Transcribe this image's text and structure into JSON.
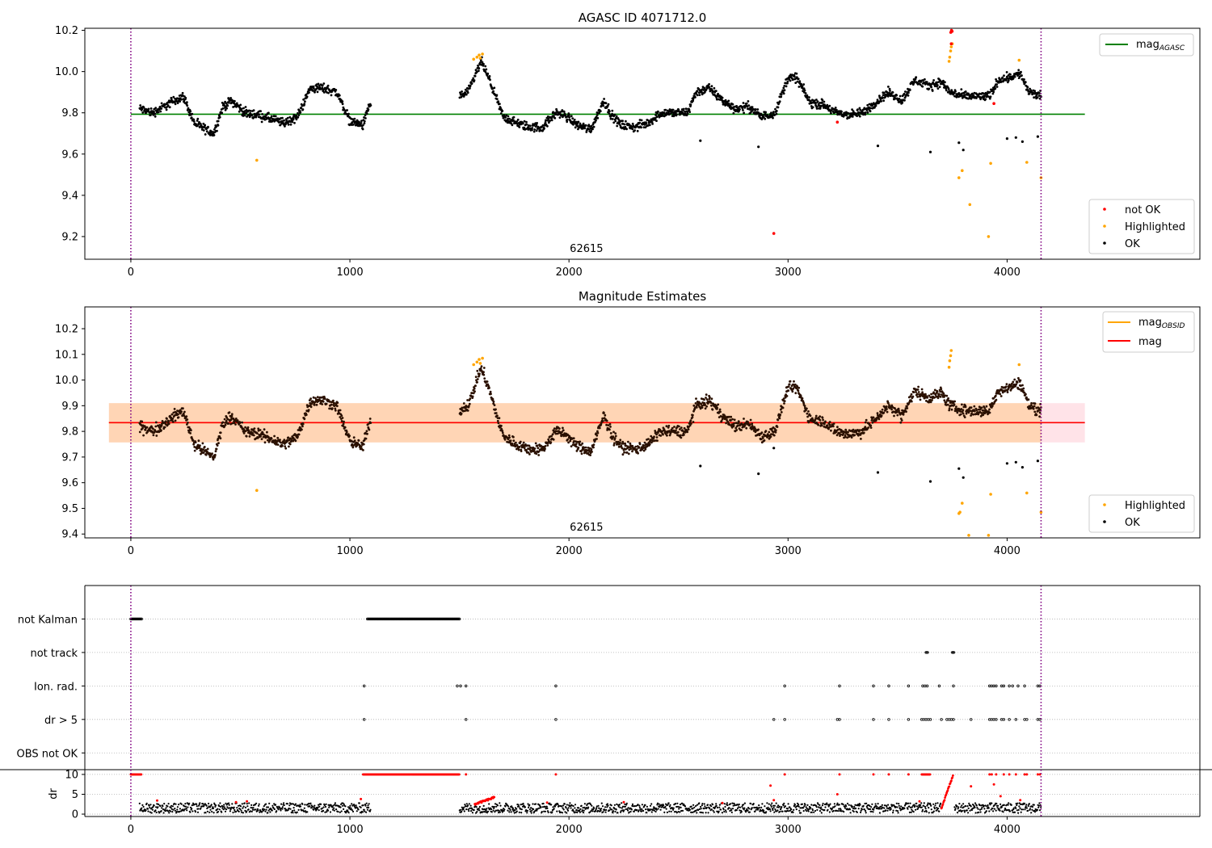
{
  "figure": {
    "colors": {
      "ok": "#000000",
      "highlighted": "#ffa500",
      "not_ok": "#ff0000",
      "mag_agasc": "#008000",
      "mag_obsid": "#ffa500",
      "mag": "#ff0000",
      "band_obsid": "#ffa500",
      "band_mag": "#ffc0cb",
      "obsid_boundary": "#800080",
      "flag_grid": "#b0b0b0"
    }
  },
  "chart_data": [
    {
      "id": "agasc",
      "type": "scatter",
      "title": "AGASC ID 4071712.0",
      "xlim": [
        -210,
        4880
      ],
      "ylim": [
        9.09,
        10.21
      ],
      "xticks": [
        0,
        1000,
        2000,
        3000,
        4000
      ],
      "yticks": [
        9.2,
        9.4,
        9.6,
        9.8,
        10.0,
        10.2
      ],
      "ytick_labels": [
        "9.2",
        "9.4",
        "9.6",
        "9.8",
        "10.0",
        "10.2"
      ],
      "grid": false,
      "obsid_label": {
        "text": "62615",
        "x": 2080
      },
      "obsid_boundaries": [
        0,
        4155
      ],
      "hlines": [
        {
          "name": "mag_AGASC",
          "y": 9.793,
          "x0": 0,
          "x1": 4355,
          "color": "#008000"
        }
      ],
      "legend_lines": {
        "position": "upper right",
        "items": [
          {
            "label": "mag",
            "sub": "AGASC",
            "color": "#008000"
          }
        ]
      },
      "legend_points": {
        "position": "lower right",
        "items": [
          {
            "label": "not OK",
            "color": "#ff0000"
          },
          {
            "label": "Highlighted",
            "color": "#ffa500"
          },
          {
            "label": "OK",
            "color": "#000000"
          }
        ]
      },
      "gaps": [
        [
          1095,
          1500
        ]
      ],
      "anchors_t": [
        40,
        100,
        150,
        200,
        240,
        290,
        340,
        380,
        420,
        460,
        520,
        580,
        640,
        700,
        760,
        820,
        880,
        940,
        1000,
        1060,
        1090,
        1500,
        1540,
        1580,
        1600,
        1640,
        1700,
        1760,
        1820,
        1880,
        1940,
        1980,
        2040,
        2100,
        2160,
        2200,
        2240,
        2300,
        2360,
        2420,
        2480,
        2540,
        2580,
        2640,
        2700,
        2760,
        2820,
        2880,
        2940,
        3000,
        3040,
        3100,
        3160,
        3220,
        3280,
        3340,
        3400,
        3460,
        3520,
        3580,
        3640,
        3700,
        3740,
        3800,
        3860,
        3920,
        3960,
        4000,
        4060,
        4100,
        4155
      ],
      "anchors_v": [
        9.82,
        9.8,
        9.83,
        9.86,
        9.88,
        9.75,
        9.72,
        9.7,
        9.83,
        9.86,
        9.8,
        9.79,
        9.77,
        9.75,
        9.78,
        9.92,
        9.92,
        9.9,
        9.76,
        9.74,
        9.84,
        9.88,
        9.9,
        10.0,
        10.05,
        9.95,
        9.78,
        9.75,
        9.73,
        9.73,
        9.8,
        9.79,
        9.74,
        9.72,
        9.86,
        9.78,
        9.74,
        9.73,
        9.75,
        9.8,
        9.8,
        9.8,
        9.9,
        9.92,
        9.86,
        9.82,
        9.83,
        9.78,
        9.8,
        9.97,
        9.97,
        9.85,
        9.84,
        9.8,
        9.79,
        9.8,
        9.85,
        9.9,
        9.86,
        9.96,
        9.93,
        9.95,
        9.9,
        9.88,
        9.88,
        9.88,
        9.96,
        9.97,
        9.99,
        9.9,
        9.88
      ],
      "noise": 0.02,
      "ok_outliers": [
        [
          2600,
          9.665
        ],
        [
          2865,
          9.635
        ],
        [
          3410,
          9.64
        ],
        [
          3650,
          9.61
        ],
        [
          3780,
          9.655
        ],
        [
          3800,
          9.62
        ],
        [
          4000,
          9.675
        ],
        [
          4040,
          9.68
        ],
        [
          4070,
          9.66
        ],
        [
          4140,
          9.685
        ]
      ],
      "highlighted_points": [
        [
          575,
          9.57
        ],
        [
          1565,
          10.06
        ],
        [
          1580,
          10.07
        ],
        [
          1590,
          10.08
        ],
        [
          1605,
          10.085
        ],
        [
          1595,
          10.065
        ],
        [
          3735,
          10.05
        ],
        [
          3738,
          10.07
        ],
        [
          3742,
          10.1
        ],
        [
          3745,
          10.12
        ],
        [
          3750,
          10.135
        ],
        [
          3780,
          9.485
        ],
        [
          3795,
          9.52
        ],
        [
          3830,
          9.355
        ],
        [
          3915,
          9.2
        ],
        [
          3925,
          9.555
        ],
        [
          4055,
          10.055
        ],
        [
          4090,
          9.56
        ],
        [
          4155,
          9.485
        ]
      ],
      "not_ok_points": [
        [
          2935,
          9.215
        ],
        [
          3225,
          9.755
        ],
        [
          3743,
          10.19
        ],
        [
          3746,
          10.2
        ],
        [
          3749,
          10.195
        ],
        [
          3745,
          10.135
        ],
        [
          3940,
          9.845
        ]
      ]
    },
    {
      "id": "mag_estimates",
      "type": "scatter",
      "title": "Magnitude Estimates",
      "xlim": [
        -210,
        4880
      ],
      "ylim": [
        9.385,
        10.285
      ],
      "xticks": [
        0,
        1000,
        2000,
        3000,
        4000
      ],
      "yticks": [
        9.4,
        9.5,
        9.6,
        9.7,
        9.8,
        9.9,
        10.0,
        10.1,
        10.2
      ],
      "ytick_labels": [
        "9.4",
        "9.5",
        "9.6",
        "9.7",
        "9.8",
        "9.9",
        "10.0",
        "10.1",
        "10.2"
      ],
      "grid": false,
      "obsid_label": {
        "text": "62615",
        "x": 2080
      },
      "obsid_boundaries": [
        0,
        4155
      ],
      "bands": [
        {
          "name": "mag_band",
          "y0": 9.757,
          "y1": 9.91,
          "x0": -100,
          "x1": 4355,
          "color": "#ffc0cb",
          "opacity": 0.45
        },
        {
          "name": "mag_obsid_band",
          "y0": 9.757,
          "y1": 9.91,
          "x0": -100,
          "x1": 4155,
          "color": "#ffa500",
          "opacity": 0.22
        }
      ],
      "hlines": [
        {
          "name": "mag_OBSID",
          "y": 9.834,
          "x0": -100,
          "x1": 4155,
          "color": "#ffa500"
        },
        {
          "name": "mag",
          "y": 9.834,
          "x0": -100,
          "x1": 4355,
          "color": "#ff0000"
        }
      ],
      "legend_lines": {
        "position": "upper right",
        "items": [
          {
            "label": "mag",
            "sub": "OBSID",
            "color": "#ffa500"
          },
          {
            "label": "mag",
            "sub": "",
            "color": "#ff0000"
          }
        ]
      },
      "legend_points": {
        "position": "lower right",
        "items": [
          {
            "label": "Highlighted",
            "color": "#ffa500"
          },
          {
            "label": "OK",
            "color": "#000000"
          }
        ]
      },
      "gaps": [
        [
          1095,
          1500
        ]
      ],
      "anchors_t": [
        40,
        100,
        150,
        200,
        240,
        290,
        340,
        380,
        420,
        460,
        520,
        580,
        640,
        700,
        760,
        820,
        880,
        940,
        1000,
        1060,
        1090,
        1500,
        1540,
        1580,
        1600,
        1640,
        1700,
        1760,
        1820,
        1880,
        1940,
        1980,
        2040,
        2100,
        2160,
        2200,
        2240,
        2300,
        2360,
        2420,
        2480,
        2540,
        2580,
        2640,
        2700,
        2760,
        2820,
        2880,
        2940,
        3000,
        3040,
        3100,
        3160,
        3220,
        3280,
        3340,
        3400,
        3460,
        3520,
        3580,
        3640,
        3700,
        3740,
        3800,
        3860,
        3920,
        3960,
        4000,
        4060,
        4100,
        4155
      ],
      "anchors_v": [
        9.82,
        9.8,
        9.83,
        9.86,
        9.88,
        9.75,
        9.72,
        9.7,
        9.83,
        9.86,
        9.8,
        9.79,
        9.77,
        9.75,
        9.78,
        9.92,
        9.92,
        9.9,
        9.76,
        9.74,
        9.84,
        9.88,
        9.9,
        10.0,
        10.05,
        9.95,
        9.78,
        9.75,
        9.73,
        9.73,
        9.8,
        9.79,
        9.74,
        9.72,
        9.86,
        9.78,
        9.74,
        9.73,
        9.75,
        9.8,
        9.8,
        9.8,
        9.9,
        9.92,
        9.86,
        9.82,
        9.83,
        9.78,
        9.8,
        9.97,
        9.97,
        9.85,
        9.84,
        9.8,
        9.79,
        9.8,
        9.85,
        9.9,
        9.86,
        9.96,
        9.93,
        9.95,
        9.9,
        9.88,
        9.88,
        9.88,
        9.96,
        9.97,
        9.99,
        9.9,
        9.88
      ],
      "noise": 0.02,
      "ok_outliers": [
        [
          2600,
          9.665
        ],
        [
          2865,
          9.635
        ],
        [
          2935,
          9.735
        ],
        [
          3410,
          9.64
        ],
        [
          3650,
          9.605
        ],
        [
          3780,
          9.655
        ],
        [
          3800,
          9.62
        ],
        [
          4000,
          9.675
        ],
        [
          4040,
          9.68
        ],
        [
          4070,
          9.66
        ],
        [
          4140,
          9.685
        ]
      ],
      "highlighted_points": [
        [
          575,
          9.57
        ],
        [
          1565,
          10.06
        ],
        [
          1580,
          10.07
        ],
        [
          1590,
          10.08
        ],
        [
          1605,
          10.085
        ],
        [
          1595,
          10.065
        ],
        [
          3735,
          10.05
        ],
        [
          3738,
          10.075
        ],
        [
          3742,
          10.095
        ],
        [
          3745,
          10.115
        ],
        [
          3780,
          9.48
        ],
        [
          3785,
          9.485
        ],
        [
          3795,
          9.52
        ],
        [
          3825,
          9.395
        ],
        [
          3915,
          9.395
        ],
        [
          3925,
          9.555
        ],
        [
          4055,
          10.06
        ],
        [
          4090,
          9.56
        ],
        [
          4155,
          9.485
        ]
      ],
      "not_ok_points": []
    },
    {
      "id": "flags",
      "type": "scatter",
      "xlim": [
        -210,
        4880
      ],
      "ylim": [
        0.5,
        6.0
      ],
      "xticks": [],
      "grid": "dotted horizontal",
      "categories": [
        "not Kalman",
        "not track",
        "Ion. rad.",
        "dr > 5",
        "OBS not OK"
      ],
      "levels": [
        5,
        4,
        3,
        2,
        1
      ],
      "obsid_boundaries": [
        0,
        4155
      ],
      "flag_runs": [
        {
          "flag": "not Kalman",
          "from": 0,
          "to": 50
        },
        {
          "flag": "not Kalman",
          "from": 1080,
          "to": 1500
        },
        {
          "flag": "not track",
          "from": 3630,
          "to": 3640
        },
        {
          "flag": "not track",
          "from": 3750,
          "to": 3760
        }
      ],
      "flag_points": {
        "Ion. rad.": [
          1065,
          1490,
          1505,
          1530,
          1940,
          2985,
          3235,
          3390,
          3460,
          3550,
          3615,
          3625,
          3635,
          3690,
          3755,
          3920,
          3930,
          3940,
          3950,
          3975,
          3985,
          4010,
          4025,
          4050,
          4080,
          4140,
          4150
        ],
        "dr > 5": [
          1065,
          1530,
          1940,
          2935,
          2985,
          3225,
          3235,
          3390,
          3460,
          3550,
          3610,
          3620,
          3630,
          3640,
          3650,
          3700,
          3725,
          3735,
          3745,
          3755,
          3835,
          3920,
          3930,
          3940,
          3950,
          3975,
          3985,
          4010,
          4040,
          4080,
          4090,
          4140,
          4150
        ]
      }
    },
    {
      "id": "dr",
      "type": "scatter",
      "xlim": [
        -210,
        4880
      ],
      "ylim": [
        -0.6,
        11.2
      ],
      "ylabel": "dr",
      "xticks": [
        0,
        1000,
        2000,
        3000,
        4000
      ],
      "yticks": [
        0,
        5,
        10
      ],
      "ytick_labels": [
        "0",
        "5",
        "10"
      ],
      "grid": "dotted horizontal",
      "obsid_boundaries": [
        0,
        4155
      ],
      "gaps": [
        [
          1095,
          1500
        ]
      ],
      "ok_band": [
        0.3,
        2.8
      ],
      "red_runs": [
        {
          "from": 0,
          "to": 50,
          "v0": 10,
          "v1": 10
        },
        {
          "from": 1060,
          "to": 1500,
          "v0": 10,
          "v1": 10
        },
        {
          "from": 1570,
          "to": 1660,
          "v0": 2.5,
          "v1": 4.2
        },
        {
          "from": 3700,
          "to": 3755,
          "v0": 1.5,
          "v1": 10
        },
        {
          "from": 3610,
          "to": 3650,
          "v0": 10,
          "v1": 10
        }
      ],
      "red_points": [
        [
          120,
          3.4
        ],
        [
          480,
          3.0
        ],
        [
          530,
          3.2
        ],
        [
          1050,
          3.8
        ],
        [
          1530,
          10
        ],
        [
          1940,
          10
        ],
        [
          1900,
          2.9
        ],
        [
          2250,
          3.0
        ],
        [
          2700,
          2.8
        ],
        [
          2920,
          7.2
        ],
        [
          2935,
          3.5
        ],
        [
          2985,
          10
        ],
        [
          3225,
          5.0
        ],
        [
          3235,
          10
        ],
        [
          3390,
          10
        ],
        [
          3460,
          10
        ],
        [
          3550,
          10
        ],
        [
          3600,
          3.2
        ],
        [
          3835,
          7.0
        ],
        [
          3920,
          10
        ],
        [
          3930,
          10
        ],
        [
          3940,
          7.5
        ],
        [
          3950,
          10
        ],
        [
          3970,
          4.5
        ],
        [
          3985,
          10
        ],
        [
          4010,
          10
        ],
        [
          4040,
          10
        ],
        [
          4080,
          10
        ],
        [
          4090,
          10
        ],
        [
          4140,
          10
        ],
        [
          4150,
          10
        ],
        [
          4060,
          3.5
        ]
      ]
    }
  ]
}
